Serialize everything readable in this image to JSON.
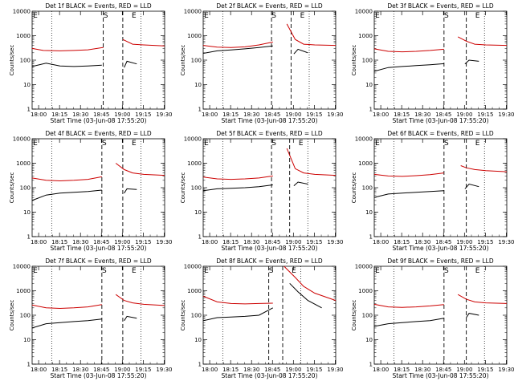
{
  "chart_data": {
    "type": "line",
    "y_axis_label": "Counts/sec",
    "x_axis_label": "Start Time (03-Jun-08 17:55:20)",
    "x_tick_labels": [
      "18:00",
      "18:15",
      "18:30",
      "18:45",
      "19:00",
      "19:15",
      "19:30"
    ],
    "y_tick_labels": [
      "1",
      "10",
      "100",
      "1000",
      "10000"
    ],
    "y_scale": "log",
    "ylim": [
      1,
      10000
    ],
    "x_unit": "minutes since 17:55:20",
    "xlim": [
      0,
      95
    ],
    "marker_labels": [
      "E",
      "S",
      "E"
    ],
    "series_colors": {
      "events": "#000000",
      "lld": "#cc0000"
    },
    "panels": [
      {
        "title": "Det 1f BLACK = Events, RED = LLD",
        "events": {
          "x": [
            0,
            10,
            20,
            30,
            40,
            50
          ],
          "y": [
            55,
            75,
            58,
            55,
            58,
            62
          ]
        },
        "lld": {
          "x": [
            0,
            8,
            20,
            30,
            40,
            51
          ],
          "y": [
            300,
            250,
            240,
            250,
            265,
            330
          ]
        },
        "events2": {
          "x": [
            66,
            68,
            75
          ],
          "y": [
            50,
            90,
            70
          ]
        },
        "lld2": {
          "x": [
            65,
            72,
            80,
            95
          ],
          "y": [
            700,
            450,
            420,
            380
          ]
        },
        "saa_start": 51,
        "saa_end": 65
      },
      {
        "title": "Det 2f BLACK = Events, RED = LLD",
        "events": {
          "x": [
            0,
            10,
            20,
            30,
            40,
            50
          ],
          "y": [
            190,
            240,
            260,
            290,
            330,
            380
          ]
        },
        "lld": {
          "x": [
            0,
            10,
            20,
            30,
            40,
            50
          ],
          "y": [
            400,
            340,
            330,
            350,
            420,
            550
          ]
        },
        "events2": {
          "x": [
            65,
            68,
            75
          ],
          "y": [
            180,
            280,
            200
          ]
        },
        "lld2": {
          "x": [
            60,
            66,
            72,
            80,
            95
          ],
          "y": [
            3000,
            700,
            450,
            420,
            400
          ]
        },
        "saa_start": 49,
        "saa_end": 63
      },
      {
        "title": "Det 3f BLACK = Events, RED = LLD",
        "events": {
          "x": [
            0,
            10,
            20,
            30,
            40,
            50
          ],
          "y": [
            35,
            50,
            55,
            60,
            65,
            72
          ]
        },
        "lld": {
          "x": [
            0,
            10,
            20,
            30,
            40,
            50
          ],
          "y": [
            290,
            230,
            220,
            230,
            250,
            280
          ]
        },
        "events2": {
          "x": [
            65,
            68,
            75
          ],
          "y": [
            70,
            100,
            90
          ]
        },
        "lld2": {
          "x": [
            60,
            66,
            72,
            80,
            95
          ],
          "y": [
            900,
            600,
            450,
            420,
            400
          ]
        },
        "saa_start": 50,
        "saa_end": 66
      },
      {
        "title": "Det 4f BLACK = Events, RED = LLD",
        "events": {
          "x": [
            0,
            10,
            20,
            30,
            40,
            50
          ],
          "y": [
            30,
            50,
            60,
            65,
            70,
            80
          ]
        },
        "lld": {
          "x": [
            0,
            10,
            20,
            30,
            40,
            50
          ],
          "y": [
            250,
            200,
            190,
            200,
            220,
            280
          ]
        },
        "events2": {
          "x": [
            66,
            68,
            75
          ],
          "y": [
            60,
            90,
            85
          ]
        },
        "lld2": {
          "x": [
            60,
            66,
            72,
            80,
            95
          ],
          "y": [
            1000,
            550,
            400,
            350,
            320
          ]
        },
        "saa_start": 50,
        "saa_end": 65
      },
      {
        "title": "Det 5f BLACK = Events, RED = LLD",
        "events": {
          "x": [
            0,
            10,
            20,
            30,
            40,
            50
          ],
          "y": [
            75,
            90,
            95,
            100,
            110,
            130
          ]
        },
        "lld": {
          "x": [
            0,
            10,
            20,
            30,
            40,
            50
          ],
          "y": [
            270,
            230,
            220,
            230,
            250,
            300
          ]
        },
        "events2": {
          "x": [
            65,
            68,
            75
          ],
          "y": [
            120,
            170,
            140
          ]
        },
        "lld2": {
          "x": [
            60,
            66,
            72,
            80,
            95
          ],
          "y": [
            4000,
            600,
            400,
            350,
            320
          ]
        },
        "saa_start": 49,
        "saa_end": 62
      },
      {
        "title": "Det 6f BLACK = Events, RED = LLD",
        "events": {
          "x": [
            0,
            10,
            20,
            30,
            40,
            50
          ],
          "y": [
            40,
            55,
            60,
            65,
            70,
            75
          ]
        },
        "lld": {
          "x": [
            0,
            10,
            20,
            30,
            40,
            50
          ],
          "y": [
            350,
            300,
            290,
            310,
            340,
            400
          ]
        },
        "events2": {
          "x": [
            65,
            68,
            75
          ],
          "y": [
            90,
            140,
            110
          ]
        },
        "lld2": {
          "x": [
            62,
            66,
            72,
            80,
            95
          ],
          "y": [
            800,
            650,
            550,
            500,
            450
          ]
        },
        "saa_start": 50,
        "saa_end": 66
      },
      {
        "title": "Det 7f BLACK = Events, RED = LLD",
        "events": {
          "x": [
            0,
            10,
            20,
            30,
            40,
            50
          ],
          "y": [
            30,
            45,
            50,
            55,
            60,
            70
          ]
        },
        "lld": {
          "x": [
            0,
            10,
            20,
            30,
            40,
            50
          ],
          "y": [
            260,
            200,
            190,
            200,
            220,
            270
          ]
        },
        "events2": {
          "x": [
            66,
            68,
            75
          ],
          "y": [
            60,
            90,
            75
          ]
        },
        "lld2": {
          "x": [
            60,
            66,
            72,
            80,
            95
          ],
          "y": [
            700,
            400,
            320,
            280,
            250
          ]
        },
        "saa_start": 50,
        "saa_end": 65
      },
      {
        "title": "Det 8f BLACK = Events, RED = LLD",
        "events": {
          "x": [
            0,
            10,
            20,
            30,
            40,
            50
          ],
          "y": [
            60,
            80,
            85,
            90,
            100,
            200
          ]
        },
        "lld": {
          "x": [
            0,
            10,
            20,
            30,
            40,
            50
          ],
          "y": [
            600,
            350,
            300,
            290,
            300,
            310
          ]
        },
        "events2": {
          "x": [
            62,
            68,
            75,
            85
          ],
          "y": [
            2000,
            900,
            400,
            200
          ]
        },
        "lld2": {
          "x": [
            58,
            66,
            72,
            80,
            95
          ],
          "y": [
            10000,
            3500,
            1500,
            800,
            400
          ]
        },
        "saa_start": 47,
        "saa_end": 57
      },
      {
        "title": "Det 9f BLACK = Events, RED = LLD",
        "events": {
          "x": [
            0,
            10,
            20,
            30,
            40,
            50
          ],
          "y": [
            35,
            45,
            50,
            55,
            60,
            75
          ]
        },
        "lld": {
          "x": [
            0,
            10,
            20,
            30,
            40,
            50
          ],
          "y": [
            280,
            220,
            210,
            220,
            240,
            270
          ]
        },
        "events2": {
          "x": [
            66,
            68,
            75
          ],
          "y": [
            80,
            120,
            100
          ]
        },
        "lld2": {
          "x": [
            60,
            66,
            72,
            80,
            95
          ],
          "y": [
            700,
            450,
            350,
            320,
            300
          ]
        },
        "saa_start": 50,
        "saa_end": 66
      }
    ]
  }
}
